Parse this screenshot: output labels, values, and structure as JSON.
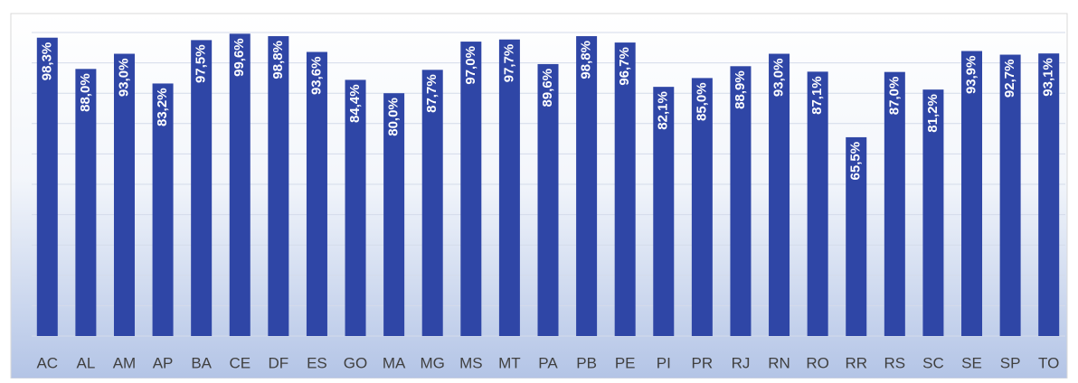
{
  "chart_data": {
    "type": "bar",
    "categories": [
      "AC",
      "AL",
      "AM",
      "AP",
      "BA",
      "CE",
      "DF",
      "ES",
      "GO",
      "MA",
      "MG",
      "MS",
      "MT",
      "PA",
      "PB",
      "PE",
      "PI",
      "PR",
      "RJ",
      "RN",
      "RO",
      "RR",
      "RS",
      "SC",
      "SE",
      "SP",
      "TO"
    ],
    "values": [
      98.3,
      88.0,
      93.0,
      83.2,
      97.5,
      99.6,
      98.8,
      93.6,
      84.4,
      80.0,
      87.7,
      97.0,
      97.7,
      89.6,
      98.8,
      96.7,
      82.1,
      85.0,
      88.9,
      93.0,
      87.1,
      65.5,
      87.0,
      81.2,
      93.9,
      92.7,
      93.1
    ],
    "value_labels": [
      "98,3%",
      "88,0%",
      "93,0%",
      "83,2%",
      "97,5%",
      "99,6%",
      "98,8%",
      "93,6%",
      "84,4%",
      "80,0%",
      "87,7%",
      "97,0%",
      "97,7%",
      "89,6%",
      "98,8%",
      "96,7%",
      "82,1%",
      "85,0%",
      "88,9%",
      "93,0%",
      "87,1%",
      "65,5%",
      "87,0%",
      "81,2%",
      "93,9%",
      "92,7%",
      "93,1%"
    ],
    "color": "#2f46a6",
    "ylim": [
      0,
      100
    ],
    "yticks": [
      0,
      10,
      20,
      30,
      40,
      50,
      60,
      70,
      80,
      90,
      100
    ],
    "grid": true
  }
}
